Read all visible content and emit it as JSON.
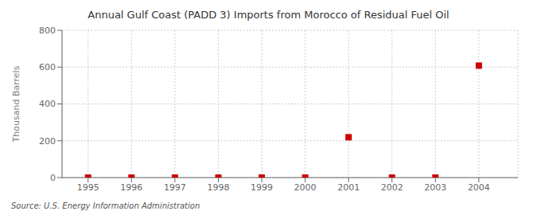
{
  "chart_data": {
    "type": "scatter",
    "title": "Annual Gulf Coast (PADD 3) Imports from Morocco of Residual Fuel Oil",
    "ylabel": "Thousand Barrels",
    "annotations": [
      "Source: U.S. Energy Information Administration"
    ],
    "x": [
      1995,
      1996,
      1997,
      1998,
      1999,
      2000,
      2001,
      2002,
      2003,
      2004
    ],
    "values": [
      0,
      0,
      0,
      0,
      0,
      0,
      219,
      0,
      0,
      608
    ],
    "color": "#CC0000",
    "marker": "square",
    "xlim": [
      1994.4,
      2004.9
    ],
    "xticks": [
      1995,
      1996,
      1997,
      1998,
      1999,
      2000,
      2001,
      2002,
      2003,
      2004
    ],
    "ylim": [
      0,
      800
    ],
    "yticks": [
      0,
      200,
      400,
      600,
      800
    ],
    "grid": true
  }
}
